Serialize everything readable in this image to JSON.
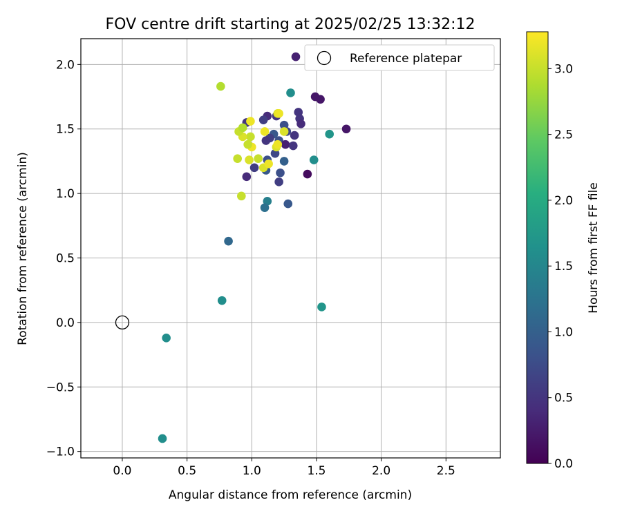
{
  "chart_data": {
    "type": "scatter",
    "title": "FOV centre drift starting at 2025/02/25 13:32:12",
    "xlabel": "Angular distance from reference (arcmin)",
    "ylabel": "Rotation from reference (arcmin)",
    "xlim": [
      -0.32,
      2.92
    ],
    "ylim": [
      -1.05,
      2.2
    ],
    "xticks": [
      0.0,
      0.5,
      1.0,
      1.5,
      2.0,
      2.5
    ],
    "xtick_labels": [
      "0.0",
      "0.5",
      "1.0",
      "1.5",
      "2.0",
      "2.5"
    ],
    "yticks": [
      -1.0,
      -0.5,
      0.0,
      0.5,
      1.0,
      1.5,
      2.0
    ],
    "ytick_labels": [
      "−1.0",
      "−0.5",
      "0.0",
      "0.5",
      "1.0",
      "1.5",
      "2.0"
    ],
    "grid": true,
    "legend": {
      "placement": "top-right",
      "label": "Reference platepar"
    },
    "reference": {
      "x": 0.0,
      "y": 0.0
    },
    "colorbar": {
      "label": "Hours from first FF file",
      "range": [
        0.0,
        3.28
      ],
      "ticks": [
        0.0,
        0.5,
        1.0,
        1.5,
        2.0,
        2.5,
        3.0
      ],
      "tick_labels": [
        "0.0",
        "0.5",
        "1.0",
        "1.5",
        "2.0",
        "2.5",
        "3.0"
      ],
      "colormap": "viridis"
    },
    "points": [
      {
        "x": 1.34,
        "y": 2.06,
        "t": 0.3
      },
      {
        "x": 1.49,
        "y": 1.75,
        "t": 0.2
      },
      {
        "x": 1.53,
        "y": 1.73,
        "t": 0.2
      },
      {
        "x": 1.3,
        "y": 1.78,
        "t": 1.6
      },
      {
        "x": 0.76,
        "y": 1.83,
        "t": 2.9
      },
      {
        "x": 1.73,
        "y": 1.5,
        "t": 0.2
      },
      {
        "x": 1.6,
        "y": 1.46,
        "t": 1.7
      },
      {
        "x": 1.36,
        "y": 1.63,
        "t": 0.5
      },
      {
        "x": 1.37,
        "y": 1.58,
        "t": 0.5
      },
      {
        "x": 1.38,
        "y": 1.54,
        "t": 0.4
      },
      {
        "x": 1.12,
        "y": 1.6,
        "t": 0.4
      },
      {
        "x": 1.09,
        "y": 1.57,
        "t": 0.6
      },
      {
        "x": 0.96,
        "y": 1.55,
        "t": 0.5
      },
      {
        "x": 1.19,
        "y": 1.6,
        "t": 0.5
      },
      {
        "x": 1.25,
        "y": 1.53,
        "t": 0.8
      },
      {
        "x": 1.27,
        "y": 1.48,
        "t": 0.7
      },
      {
        "x": 1.17,
        "y": 1.46,
        "t": 0.9
      },
      {
        "x": 1.33,
        "y": 1.45,
        "t": 0.5
      },
      {
        "x": 1.14,
        "y": 1.43,
        "t": 0.6
      },
      {
        "x": 1.21,
        "y": 1.41,
        "t": 0.8
      },
      {
        "x": 1.11,
        "y": 1.41,
        "t": 0.5
      },
      {
        "x": 1.26,
        "y": 1.38,
        "t": 0.3
      },
      {
        "x": 1.32,
        "y": 1.37,
        "t": 0.5
      },
      {
        "x": 1.18,
        "y": 1.31,
        "t": 0.7
      },
      {
        "x": 1.12,
        "y": 1.26,
        "t": 0.8
      },
      {
        "x": 1.25,
        "y": 1.25,
        "t": 1.0
      },
      {
        "x": 1.02,
        "y": 1.2,
        "t": 0.6
      },
      {
        "x": 1.11,
        "y": 1.18,
        "t": 0.9
      },
      {
        "x": 1.22,
        "y": 1.16,
        "t": 0.8
      },
      {
        "x": 1.43,
        "y": 1.15,
        "t": 0.1
      },
      {
        "x": 0.96,
        "y": 1.13,
        "t": 0.4
      },
      {
        "x": 1.21,
        "y": 1.09,
        "t": 0.6
      },
      {
        "x": 1.48,
        "y": 1.26,
        "t": 1.6
      },
      {
        "x": 1.12,
        "y": 0.94,
        "t": 1.4
      },
      {
        "x": 1.1,
        "y": 0.89,
        "t": 1.2
      },
      {
        "x": 1.28,
        "y": 0.92,
        "t": 0.9
      },
      {
        "x": 0.82,
        "y": 0.63,
        "t": 1.1
      },
      {
        "x": 0.77,
        "y": 0.17,
        "t": 1.6
      },
      {
        "x": 1.54,
        "y": 0.12,
        "t": 1.7
      },
      {
        "x": 0.34,
        "y": -0.12,
        "t": 1.6
      },
      {
        "x": 0.31,
        "y": -0.9,
        "t": 1.6
      },
      {
        "x": 0.92,
        "y": 0.98,
        "t": 3.0
      },
      {
        "x": 0.89,
        "y": 1.27,
        "t": 3.0
      },
      {
        "x": 0.98,
        "y": 1.26,
        "t": 3.1
      },
      {
        "x": 1.05,
        "y": 1.27,
        "t": 3.0
      },
      {
        "x": 1.09,
        "y": 1.2,
        "t": 3.1
      },
      {
        "x": 1.13,
        "y": 1.23,
        "t": 3.2
      },
      {
        "x": 1.0,
        "y": 1.36,
        "t": 3.2
      },
      {
        "x": 0.97,
        "y": 1.38,
        "t": 3.0
      },
      {
        "x": 0.99,
        "y": 1.44,
        "t": 3.0
      },
      {
        "x": 0.93,
        "y": 1.44,
        "t": 3.1
      },
      {
        "x": 0.9,
        "y": 1.48,
        "t": 3.0
      },
      {
        "x": 0.93,
        "y": 1.51,
        "t": 2.9
      },
      {
        "x": 0.99,
        "y": 1.56,
        "t": 3.2
      },
      {
        "x": 1.1,
        "y": 1.48,
        "t": 3.2
      },
      {
        "x": 1.2,
        "y": 1.62,
        "t": 3.1
      },
      {
        "x": 1.21,
        "y": 1.62,
        "t": 3.2
      },
      {
        "x": 1.19,
        "y": 1.36,
        "t": 3.1
      },
      {
        "x": 1.2,
        "y": 1.38,
        "t": 3.2
      },
      {
        "x": 1.25,
        "y": 1.48,
        "t": 3.1
      }
    ]
  }
}
